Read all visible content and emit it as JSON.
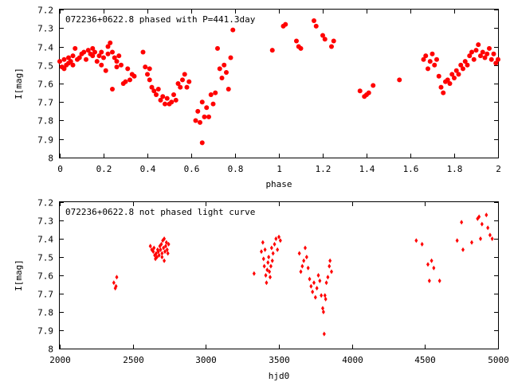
{
  "chart_data": [
    {
      "type": "scatter",
      "title": "072236+0622.8 phased with P=441.3day",
      "xlabel": "phase",
      "ylabel": "I[mag]",
      "xlim": [
        0,
        2
      ],
      "ylim": [
        8,
        7.2
      ],
      "y_inverted": true,
      "grid": false,
      "marker_color": "#ff0000",
      "marker": "filled-circle",
      "xticks": [
        0,
        0.2,
        0.4,
        0.6,
        0.8,
        1,
        1.2,
        1.4,
        1.6,
        1.8,
        2
      ],
      "xtick_labels": [
        "0",
        "0.2",
        "0.4",
        "0.6",
        "0.8",
        "1",
        "1.2",
        "1.4",
        "1.6",
        "1.8",
        "2"
      ],
      "yticks": [
        7.2,
        7.3,
        7.4,
        7.5,
        7.6,
        7.7,
        7.8,
        7.9,
        8
      ],
      "ytick_labels": [
        "7.2",
        "7.3",
        "7.4",
        "7.5",
        "7.6",
        "7.7",
        "7.8",
        "7.9",
        "8"
      ],
      "points": [
        [
          0.0,
          7.48
        ],
        [
          0.01,
          7.51
        ],
        [
          0.02,
          7.47
        ],
        [
          0.02,
          7.52
        ],
        [
          0.03,
          7.5
        ],
        [
          0.04,
          7.49
        ],
        [
          0.04,
          7.46
        ],
        [
          0.05,
          7.48
        ],
        [
          0.06,
          7.45
        ],
        [
          0.06,
          7.5
        ],
        [
          0.07,
          7.41
        ],
        [
          0.08,
          7.47
        ],
        [
          0.09,
          7.46
        ],
        [
          0.1,
          7.44
        ],
        [
          0.11,
          7.43
        ],
        [
          0.12,
          7.47
        ],
        [
          0.13,
          7.42
        ],
        [
          0.14,
          7.44
        ],
        [
          0.15,
          7.41
        ],
        [
          0.15,
          7.45
        ],
        [
          0.16,
          7.43
        ],
        [
          0.17,
          7.48
        ],
        [
          0.18,
          7.45
        ],
        [
          0.19,
          7.5
        ],
        [
          0.19,
          7.43
        ],
        [
          0.2,
          7.46
        ],
        [
          0.21,
          7.53
        ],
        [
          0.22,
          7.4
        ],
        [
          0.22,
          7.44
        ],
        [
          0.23,
          7.38
        ],
        [
          0.24,
          7.43
        ],
        [
          0.24,
          7.63
        ],
        [
          0.25,
          7.46
        ],
        [
          0.26,
          7.48
        ],
        [
          0.26,
          7.51
        ],
        [
          0.27,
          7.45
        ],
        [
          0.28,
          7.5
        ],
        [
          0.29,
          7.6
        ],
        [
          0.3,
          7.59
        ],
        [
          0.31,
          7.52
        ],
        [
          0.32,
          7.58
        ],
        [
          0.33,
          7.55
        ],
        [
          0.34,
          7.56
        ],
        [
          0.38,
          7.43
        ],
        [
          0.39,
          7.51
        ],
        [
          0.4,
          7.55
        ],
        [
          0.41,
          7.52
        ],
        [
          0.41,
          7.58
        ],
        [
          0.42,
          7.62
        ],
        [
          0.43,
          7.64
        ],
        [
          0.44,
          7.66
        ],
        [
          0.45,
          7.63
        ],
        [
          0.46,
          7.69
        ],
        [
          0.47,
          7.67
        ],
        [
          0.48,
          7.71
        ],
        [
          0.49,
          7.68
        ],
        [
          0.5,
          7.71
        ],
        [
          0.51,
          7.7
        ],
        [
          0.52,
          7.66
        ],
        [
          0.53,
          7.69
        ],
        [
          0.54,
          7.6
        ],
        [
          0.55,
          7.62
        ],
        [
          0.56,
          7.58
        ],
        [
          0.57,
          7.55
        ],
        [
          0.58,
          7.62
        ],
        [
          0.59,
          7.59
        ],
        [
          0.62,
          7.8
        ],
        [
          0.63,
          7.75
        ],
        [
          0.64,
          7.81
        ],
        [
          0.65,
          7.7
        ],
        [
          0.65,
          7.92
        ],
        [
          0.66,
          7.78
        ],
        [
          0.67,
          7.73
        ],
        [
          0.68,
          7.78
        ],
        [
          0.69,
          7.66
        ],
        [
          0.7,
          7.71
        ],
        [
          0.71,
          7.65
        ],
        [
          0.72,
          7.41
        ],
        [
          0.73,
          7.52
        ],
        [
          0.74,
          7.57
        ],
        [
          0.75,
          7.5
        ],
        [
          0.76,
          7.54
        ],
        [
          0.77,
          7.63
        ],
        [
          0.78,
          7.46
        ],
        [
          0.79,
          7.31
        ],
        [
          0.97,
          7.42
        ],
        [
          1.02,
          7.29
        ],
        [
          1.03,
          7.28
        ],
        [
          1.08,
          7.37
        ],
        [
          1.09,
          7.4
        ],
        [
          1.1,
          7.41
        ],
        [
          1.16,
          7.26
        ],
        [
          1.17,
          7.29
        ],
        [
          1.2,
          7.34
        ],
        [
          1.21,
          7.36
        ],
        [
          1.24,
          7.4
        ],
        [
          1.25,
          7.37
        ],
        [
          1.37,
          7.64
        ],
        [
          1.39,
          7.67
        ],
        [
          1.4,
          7.66
        ],
        [
          1.41,
          7.65
        ],
        [
          1.43,
          7.61
        ],
        [
          1.55,
          7.58
        ],
        [
          1.66,
          7.47
        ],
        [
          1.67,
          7.45
        ],
        [
          1.68,
          7.52
        ],
        [
          1.69,
          7.48
        ],
        [
          1.7,
          7.44
        ],
        [
          1.71,
          7.5
        ],
        [
          1.72,
          7.47
        ],
        [
          1.73,
          7.56
        ],
        [
          1.74,
          7.62
        ],
        [
          1.75,
          7.65
        ],
        [
          1.76,
          7.59
        ],
        [
          1.77,
          7.58
        ],
        [
          1.78,
          7.6
        ],
        [
          1.79,
          7.55
        ],
        [
          1.8,
          7.57
        ],
        [
          1.81,
          7.53
        ],
        [
          1.82,
          7.55
        ],
        [
          1.83,
          7.5
        ],
        [
          1.84,
          7.52
        ],
        [
          1.85,
          7.48
        ],
        [
          1.86,
          7.5
        ],
        [
          1.87,
          7.45
        ],
        [
          1.88,
          7.43
        ],
        [
          1.89,
          7.47
        ],
        [
          1.9,
          7.42
        ],
        [
          1.91,
          7.39
        ],
        [
          1.92,
          7.45
        ],
        [
          1.93,
          7.43
        ],
        [
          1.94,
          7.46
        ],
        [
          1.95,
          7.44
        ],
        [
          1.96,
          7.41
        ],
        [
          1.97,
          7.47
        ],
        [
          1.98,
          7.44
        ],
        [
          1.99,
          7.49
        ],
        [
          2.0,
          7.47
        ]
      ]
    },
    {
      "type": "scatter",
      "title": "072236+0622.8 not phased light curve",
      "xlabel": "hjd0",
      "ylabel": "I[mag]",
      "xlim": [
        2000,
        5000
      ],
      "ylim": [
        8,
        7.2
      ],
      "y_inverted": true,
      "grid": false,
      "marker_color": "#ff0000",
      "marker": "diamond",
      "xticks": [
        2000,
        2500,
        3000,
        3500,
        4000,
        4500,
        5000
      ],
      "xtick_labels": [
        "2000",
        "2500",
        "3000",
        "3500",
        "4000",
        "4500",
        "5000"
      ],
      "yticks": [
        7.2,
        7.3,
        7.4,
        7.5,
        7.6,
        7.7,
        7.8,
        7.9,
        8
      ],
      "ytick_labels": [
        "7.2",
        "7.3",
        "7.4",
        "7.5",
        "7.6",
        "7.7",
        "7.8",
        "7.9",
        "8"
      ],
      "points": [
        [
          2370,
          7.64
        ],
        [
          2380,
          7.67
        ],
        [
          2385,
          7.66
        ],
        [
          2390,
          7.61
        ],
        [
          2620,
          7.44
        ],
        [
          2630,
          7.46
        ],
        [
          2640,
          7.47
        ],
        [
          2645,
          7.45
        ],
        [
          2650,
          7.49
        ],
        [
          2655,
          7.51
        ],
        [
          2660,
          7.48
        ],
        [
          2665,
          7.5
        ],
        [
          2670,
          7.46
        ],
        [
          2675,
          7.47
        ],
        [
          2680,
          7.49
        ],
        [
          2685,
          7.44
        ],
        [
          2690,
          7.46
        ],
        [
          2695,
          7.43
        ],
        [
          2700,
          7.48
        ],
        [
          2705,
          7.41
        ],
        [
          2710,
          7.45
        ],
        [
          2715,
          7.4
        ],
        [
          2720,
          7.47
        ],
        [
          2725,
          7.44
        ],
        [
          2730,
          7.42
        ],
        [
          2735,
          7.46
        ],
        [
          2740,
          7.48
        ],
        [
          2745,
          7.43
        ],
        [
          2715,
          7.52
        ],
        [
          2700,
          7.5
        ],
        [
          3330,
          7.59
        ],
        [
          3380,
          7.47
        ],
        [
          3390,
          7.42
        ],
        [
          3395,
          7.51
        ],
        [
          3400,
          7.55
        ],
        [
          3405,
          7.46
        ],
        [
          3410,
          7.6
        ],
        [
          3415,
          7.64
        ],
        [
          3420,
          7.57
        ],
        [
          3425,
          7.53
        ],
        [
          3430,
          7.5
        ],
        [
          3435,
          7.58
        ],
        [
          3440,
          7.61
        ],
        [
          3445,
          7.55
        ],
        [
          3450,
          7.45
        ],
        [
          3455,
          7.52
        ],
        [
          3460,
          7.48
        ],
        [
          3470,
          7.43
        ],
        [
          3480,
          7.4
        ],
        [
          3490,
          7.46
        ],
        [
          3500,
          7.39
        ],
        [
          3510,
          7.41
        ],
        [
          3640,
          7.48
        ],
        [
          3650,
          7.58
        ],
        [
          3660,
          7.55
        ],
        [
          3670,
          7.52
        ],
        [
          3680,
          7.45
        ],
        [
          3690,
          7.5
        ],
        [
          3700,
          7.56
        ],
        [
          3710,
          7.62
        ],
        [
          3720,
          7.66
        ],
        [
          3730,
          7.69
        ],
        [
          3740,
          7.64
        ],
        [
          3750,
          7.72
        ],
        [
          3760,
          7.67
        ],
        [
          3770,
          7.6
        ],
        [
          3780,
          7.63
        ],
        [
          3790,
          7.71
        ],
        [
          3800,
          7.78
        ],
        [
          3805,
          7.8
        ],
        [
          3810,
          7.92
        ],
        [
          3815,
          7.71
        ],
        [
          3820,
          7.73
        ],
        [
          3825,
          7.64
        ],
        [
          3835,
          7.61
        ],
        [
          3845,
          7.55
        ],
        [
          3850,
          7.52
        ],
        [
          3860,
          7.58
        ],
        [
          4440,
          7.41
        ],
        [
          4480,
          7.43
        ],
        [
          4520,
          7.54
        ],
        [
          4530,
          7.63
        ],
        [
          4545,
          7.52
        ],
        [
          4560,
          7.56
        ],
        [
          4600,
          7.63
        ],
        [
          4720,
          7.41
        ],
        [
          4750,
          7.31
        ],
        [
          4760,
          7.46
        ],
        [
          4820,
          7.42
        ],
        [
          4860,
          7.29
        ],
        [
          4870,
          7.28
        ],
        [
          4880,
          7.4
        ],
        [
          4890,
          7.32
        ],
        [
          4920,
          7.27
        ],
        [
          4930,
          7.34
        ],
        [
          4945,
          7.38
        ],
        [
          4960,
          7.4
        ]
      ]
    }
  ]
}
